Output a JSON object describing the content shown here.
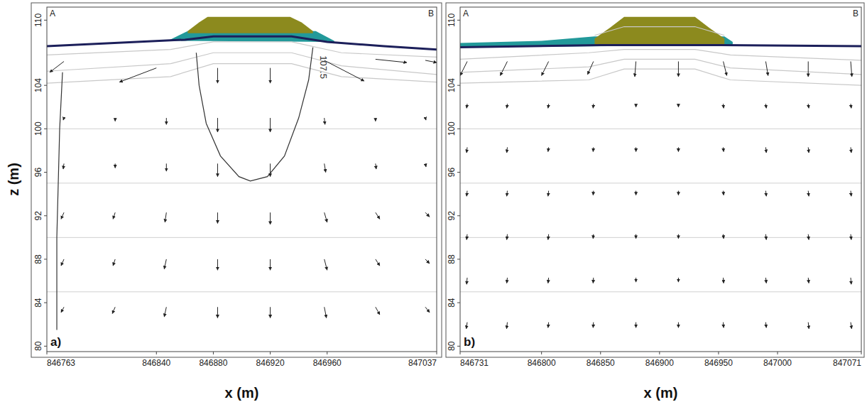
{
  "chart_data": [
    {
      "type": "vector_field",
      "panel": "a)",
      "corner_labels": [
        "A",
        "B"
      ],
      "x_label": "x (m)",
      "y_label": "z (m)",
      "xlim": [
        846763,
        847037
      ],
      "ylim": [
        79.5,
        111.2
      ],
      "xticks": [
        846763,
        846840,
        846880,
        846920,
        846960,
        847037
      ],
      "yticks": [
        110,
        104,
        100,
        96,
        92,
        88,
        84,
        80
      ],
      "grid": false,
      "layer_bottoms": [
        100,
        95,
        90,
        85
      ],
      "fills": [
        {
          "color": "#22999a",
          "x": [
            846848,
            846862,
            846952,
            846965,
            846965,
            846848
          ],
          "z": [
            108.1,
            109.0,
            109.0,
            108.1,
            108.0,
            108.1
          ]
        },
        {
          "color": "#8c8a1e",
          "x": [
            846862,
            846870,
            846876,
            846934,
            846942,
            846950,
            846950,
            846862
          ],
          "z": [
            109.0,
            109.8,
            110.3,
            110.3,
            109.8,
            109.0,
            108.8,
            108.8
          ]
        }
      ],
      "lines": [
        {
          "color": "#c8c8c8",
          "x": [
            846763,
            846850,
            846880,
            846935,
            846970,
            847037
          ],
          "z": [
            106.8,
            107.3,
            108.0,
            108.0,
            107.0,
            106.6
          ]
        },
        {
          "color": "#c8c8c8",
          "x": [
            846763,
            846850,
            846880,
            846935,
            846970,
            847037
          ],
          "z": [
            105.3,
            106.0,
            107.0,
            107.0,
            105.8,
            105.0
          ]
        },
        {
          "color": "#c8c8c8",
          "x": [
            846763,
            846850,
            846880,
            846935,
            846970,
            847037
          ],
          "z": [
            104.2,
            104.8,
            106.0,
            106.0,
            104.8,
            104.3
          ]
        },
        {
          "color": "#1c1f5a",
          "x": [
            846763,
            846860,
            846880,
            846935,
            846960,
            847000,
            847037
          ],
          "z": [
            107.6,
            108.2,
            108.5,
            108.5,
            108.0,
            107.6,
            107.3
          ]
        }
      ],
      "contours": [
        {
          "label": "107.5",
          "x": [
            846868,
            846870,
            846875,
            846885,
            846898,
            846906,
            846918,
            846930,
            846940,
            846947,
            846950
          ],
          "z": [
            107.0,
            104.0,
            100.5,
            97.5,
            95.6,
            95.2,
            95.6,
            97.5,
            101.0,
            104.5,
            107.5
          ]
        },
        {
          "x": [
            846774,
            846772,
            846770,
            846770
          ],
          "z": [
            105.2,
            100.0,
            90.0,
            81.5
          ]
        }
      ],
      "vectors": {
        "x": [
          846775,
          846840,
          846883,
          846920,
          846958,
          846994,
          847029,
          846775,
          846811,
          846847,
          846883,
          846920,
          846958,
          846994,
          847029,
          846775,
          846811,
          846847,
          846883,
          846920,
          846958,
          846994,
          847029,
          846775,
          846811,
          846847,
          846883,
          846920,
          846958,
          846994,
          847029,
          846775,
          846811,
          846847,
          846883,
          846920,
          846958,
          846994,
          847029,
          846775,
          846811,
          846847,
          846883,
          846920,
          846958,
          846994,
          847029
        ],
        "z": [
          106.2,
          105.6,
          105.6,
          105.6,
          106.3,
          106.4,
          106.3,
          101,
          101,
          101,
          101,
          101,
          101,
          101,
          101,
          96.8,
          96.8,
          96.8,
          96.8,
          96.8,
          96.8,
          96.8,
          96.8,
          92.3,
          92.3,
          92.3,
          92.3,
          92.3,
          92.3,
          92.3,
          92.3,
          88,
          88,
          88,
          88,
          88,
          88,
          88,
          88,
          83.6,
          83.6,
          83.6,
          83.6,
          83.6,
          83.6,
          83.6,
          83.6
        ],
        "dx": [
          -10,
          -26,
          0,
          0,
          28,
          22,
          8,
          -0.5,
          0,
          0,
          0,
          0,
          0.5,
          0,
          0.5,
          -0.5,
          0,
          0,
          0,
          0,
          1,
          0.5,
          0.5,
          -2,
          -1.5,
          -1,
          0,
          0,
          2,
          3,
          3,
          -2,
          -1.5,
          -1.5,
          0,
          0,
          2,
          3,
          3,
          -2,
          -2,
          -1.5,
          0,
          0,
          1.5,
          3,
          3
        ],
        "dz": [
          -1.0,
          -1.3,
          -1.4,
          -1.4,
          -1.9,
          -0.3,
          -0.2,
          -0.2,
          -0.3,
          -0.6,
          -1.3,
          -1.3,
          -0.6,
          -0.3,
          -0.2,
          -0.5,
          -0.4,
          -0.7,
          -1.2,
          -1.2,
          -0.8,
          -0.5,
          -0.3,
          -0.6,
          -0.6,
          -0.9,
          -1.0,
          -1.1,
          -0.9,
          -0.6,
          -0.4,
          -0.6,
          -0.6,
          -0.9,
          -1.0,
          -1.0,
          -1.0,
          -0.6,
          -0.4,
          -0.5,
          -0.6,
          -0.9,
          -1.0,
          -1.0,
          -1.0,
          -0.7,
          -0.5
        ]
      }
    },
    {
      "type": "vector_field",
      "panel": "b)",
      "corner_labels": [
        "A",
        "B"
      ],
      "x_label": "x (m)",
      "xlim": [
        846731,
        847071
      ],
      "ylim": [
        79.5,
        111.2
      ],
      "xticks": [
        846731,
        846800,
        846850,
        846900,
        846950,
        847000,
        847071
      ],
      "yticks": [
        110,
        104,
        100,
        96,
        92,
        88,
        84,
        80
      ],
      "grid": false,
      "layer_bottoms": [
        100,
        95,
        90,
        85
      ],
      "fills": [
        {
          "color": "#22999a",
          "x": [
            846731,
            846800,
            846845,
            846955,
            846962,
            846962,
            846731
          ],
          "z": [
            107.9,
            108.1,
            108.5,
            108.5,
            108.0,
            107.7,
            107.5
          ]
        },
        {
          "color": "#8c8a1e",
          "x": [
            846845,
            846858,
            846870,
            846930,
            846942,
            846955,
            846955,
            846845
          ],
          "z": [
            108.3,
            109.3,
            110.3,
            110.3,
            109.3,
            108.3,
            107.7,
            107.7
          ]
        }
      ],
      "lines": [
        {
          "color": "#c8c8c8",
          "x": [
            846731,
            846840,
            846870,
            846930,
            846960,
            847071
          ],
          "z": [
            106.4,
            107.0,
            107.3,
            107.3,
            106.8,
            106.3
          ]
        },
        {
          "color": "#c8c8c8",
          "x": [
            846731,
            846840,
            846870,
            846930,
            846960,
            847071
          ],
          "z": [
            105.2,
            105.7,
            106.4,
            106.4,
            105.6,
            105.0
          ]
        },
        {
          "color": "#c8c8c8",
          "x": [
            846731,
            846840,
            846870,
            846930,
            846960,
            847071
          ],
          "z": [
            104.2,
            104.5,
            105.5,
            105.5,
            104.5,
            104.0
          ]
        },
        {
          "color": "#c8c8c8",
          "x": [
            846845,
            846870,
            846930,
            846955
          ],
          "z": [
            108.6,
            109.4,
            109.4,
            108.6
          ]
        },
        {
          "color": "#1c1f5a",
          "x": [
            846731,
            846850,
            846950,
            847071
          ],
          "z": [
            107.5,
            107.7,
            107.7,
            107.6
          ]
        }
      ],
      "vectors": {
        "x": [
          846737,
          846771,
          846806,
          846844,
          846880,
          846916,
          846954,
          846990,
          847026,
          847062,
          846737,
          846771,
          846806,
          846844,
          846880,
          846916,
          846954,
          846990,
          847026,
          847062,
          846737,
          846771,
          846806,
          846844,
          846880,
          846916,
          846954,
          846990,
          847026,
          847062,
          846737,
          846771,
          846806,
          846844,
          846880,
          846916,
          846954,
          846990,
          847026,
          847062,
          846737,
          846771,
          846806,
          846844,
          846880,
          846916,
          846954,
          846990,
          847026,
          847062,
          846737,
          846771,
          846806,
          846844,
          846880,
          846916,
          846954,
          846990,
          847026,
          847062,
          846737,
          846771,
          846806,
          846844,
          846880,
          846916,
          846954,
          846990,
          847026,
          847062
        ],
        "z": [
          106.2,
          106.2,
          106.2,
          106.2,
          106.2,
          106.2,
          106.2,
          106.2,
          106.2,
          106.2,
          102.3,
          102.3,
          102.3,
          102.3,
          102.3,
          102.3,
          102.3,
          102.3,
          102.3,
          102.3,
          98.3,
          98.3,
          98.3,
          98.3,
          98.3,
          98.3,
          98.3,
          98.3,
          98.3,
          98.3,
          94.3,
          94.3,
          94.3,
          94.3,
          94.3,
          94.3,
          94.3,
          94.3,
          94.3,
          94.3,
          90.3,
          90.3,
          90.3,
          90.3,
          90.3,
          90.3,
          90.3,
          90.3,
          90.3,
          90.3,
          86.3,
          86.3,
          86.3,
          86.3,
          86.3,
          86.3,
          86.3,
          86.3,
          86.3,
          86.3,
          82.2,
          82.2,
          82.2,
          82.2,
          82.2,
          82.2,
          82.2,
          82.2,
          82.2,
          82.2
        ],
        "dx": [
          -6,
          -6,
          -6,
          -5,
          -1,
          0,
          3,
          2,
          0,
          1,
          -0.5,
          -0.5,
          -0.5,
          -0.3,
          0,
          0,
          0.3,
          0.5,
          0.5,
          0.5,
          -0.5,
          -0.5,
          -0.5,
          -0.3,
          0,
          0,
          0.3,
          0.5,
          0.5,
          0.5,
          -0.5,
          -0.5,
          -0.5,
          -0.3,
          0,
          0,
          0.3,
          0.5,
          0.5,
          0.5,
          -0.5,
          -0.5,
          -0.5,
          -0.3,
          0,
          0,
          0.3,
          0.5,
          0.5,
          0.5,
          -0.5,
          -0.5,
          -0.5,
          -0.3,
          0,
          0,
          0.3,
          0.5,
          0.5,
          0.5,
          -0.8,
          -0.6,
          -0.5,
          -0.3,
          0,
          0,
          0.3,
          0.5,
          0.6,
          0.8
        ],
        "dz": [
          -1.3,
          -1.3,
          -1.3,
          -1.2,
          -1.4,
          -1.4,
          -1.3,
          -1.3,
          -1.4,
          -1.4,
          -0.4,
          -0.4,
          -0.4,
          -0.4,
          -0.3,
          -0.3,
          -0.4,
          -0.4,
          -0.4,
          -0.4,
          -0.5,
          -0.5,
          -0.4,
          -0.4,
          -0.4,
          -0.4,
          -0.4,
          -0.5,
          -0.5,
          -0.5,
          -0.5,
          -0.5,
          -0.5,
          -0.4,
          -0.4,
          -0.4,
          -0.4,
          -0.5,
          -0.5,
          -0.5,
          -0.5,
          -0.5,
          -0.5,
          -0.4,
          -0.4,
          -0.4,
          -0.4,
          -0.5,
          -0.5,
          -0.5,
          -0.6,
          -0.5,
          -0.5,
          -0.5,
          -0.4,
          -0.4,
          -0.5,
          -0.5,
          -0.5,
          -0.6,
          -0.6,
          -0.6,
          -0.5,
          -0.5,
          -0.5,
          -0.5,
          -0.5,
          -0.5,
          -0.6,
          -0.6
        ]
      }
    }
  ]
}
